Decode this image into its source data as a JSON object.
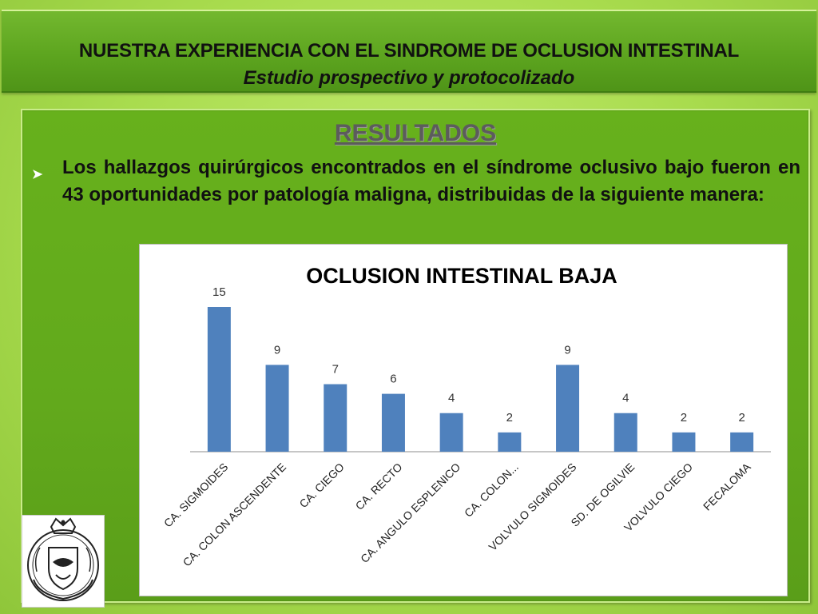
{
  "header": {
    "title": "NUESTRA EXPERIENCIA CON EL SINDROME DE OCLUSION INTESTINAL",
    "subtitle": "Estudio prospectivo y protocolizado"
  },
  "content": {
    "section_heading": "RESULTADOS",
    "bullet_icon": "arrow-bullet-icon",
    "bullet_text": "Los hallazgos quirúrgicos encontrados en el síndrome oclusivo bajo fueron en 43 oportunidades por patología maligna, distribuidas de la siguiente manera:"
  },
  "logo": {
    "icon": "university-crest-icon"
  },
  "colors": {
    "bar": "#4f81bd",
    "axis": "#8c8c8c",
    "header_bg": "#5da51f",
    "panel_bg": "#62a91c"
  },
  "chart_data": {
    "type": "bar",
    "title": "OCLUSION INTESTINAL BAJA",
    "categories": [
      "CA. SIGMOIDES",
      "CA. COLON ASCENDENTE",
      "CA. CIEGO",
      "CA. RECTO",
      "CA. ANGULO ESPLENICO",
      "CA. COLON...",
      "VOLVULO SIGMOIDES",
      "SD. DE OGILVIE",
      "VOLVULO CIEGO",
      "FECALOMA"
    ],
    "values": [
      15,
      9,
      7,
      6,
      4,
      2,
      9,
      4,
      2,
      2
    ],
    "data_labels": [
      "15",
      "9",
      "7",
      "6",
      "4",
      "2",
      "9",
      "4",
      "2",
      "2"
    ],
    "xlabel": "",
    "ylabel": "",
    "ylim": [
      0,
      15
    ],
    "grid": false,
    "legend": "none"
  }
}
